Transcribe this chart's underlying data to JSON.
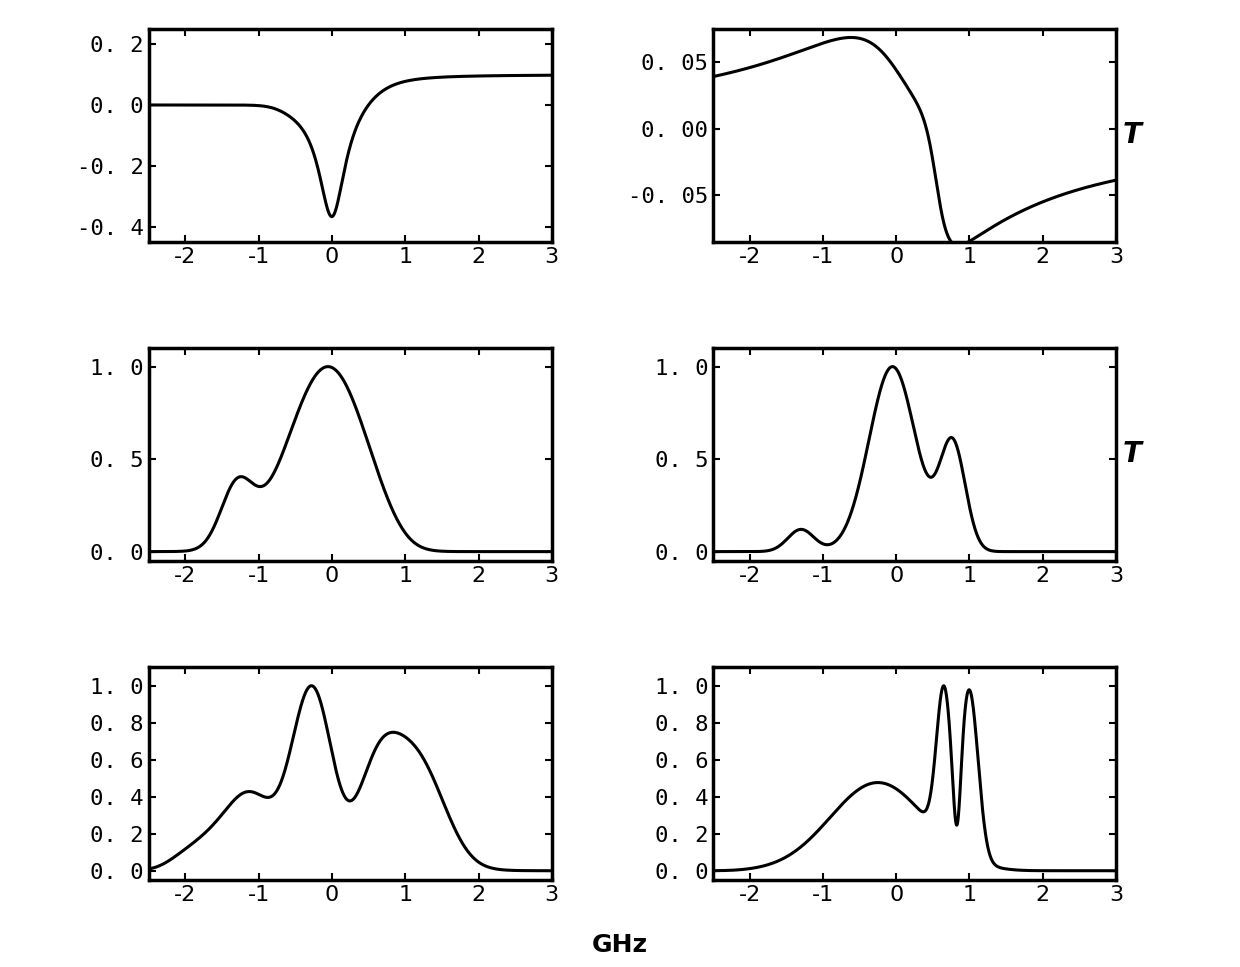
{
  "xlim": [
    -2.5,
    3.0
  ],
  "xticks": [
    -2,
    -1,
    0,
    1,
    2,
    3
  ],
  "plots": [
    {
      "ylim": [
        -0.45,
        0.25
      ],
      "yticks": [
        0.2,
        0.0,
        -0.2,
        -0.4
      ],
      "ytick_labels": [
        "0. 2",
        "0. 0",
        "-0. 2",
        "-0. 4"
      ],
      "type": "dispersion1"
    },
    {
      "ylim": [
        -0.085,
        0.075
      ],
      "yticks": [
        0.05,
        0.0,
        -0.05
      ],
      "ytick_labels": [
        "0. 05",
        "0. 00",
        "-0. 05"
      ],
      "type": "dispersion2"
    },
    {
      "ylim": [
        -0.05,
        1.1
      ],
      "yticks": [
        0.0,
        0.5,
        1.0
      ],
      "ytick_labels": [
        "0. 0",
        "0. 5",
        "1. 0"
      ],
      "type": "transmission1"
    },
    {
      "ylim": [
        -0.05,
        1.1
      ],
      "yticks": [
        0.0,
        0.5,
        1.0
      ],
      "ytick_labels": [
        "0. 0",
        "0. 5",
        "1. 0"
      ],
      "type": "transmission2"
    },
    {
      "ylim": [
        -0.05,
        1.1
      ],
      "yticks": [
        0.0,
        0.2,
        0.4,
        0.6,
        0.8,
        1.0
      ],
      "ytick_labels": [
        "0. 0",
        "0. 2",
        "0. 4",
        "0. 6",
        "0. 8",
        "1. 0"
      ],
      "type": "transmission3"
    },
    {
      "ylim": [
        -0.05,
        1.1
      ],
      "yticks": [
        0.0,
        0.2,
        0.4,
        0.6,
        0.8,
        1.0
      ],
      "ytick_labels": [
        "0. 0",
        "0. 2",
        "0. 4",
        "0. 6",
        "0. 8",
        "1. 0"
      ],
      "type": "transmission4"
    }
  ],
  "right_labels": {
    "1": "T",
    "3": "T"
  },
  "xlabel": "GHz",
  "linewidth": 2.2,
  "fontsize": 16
}
